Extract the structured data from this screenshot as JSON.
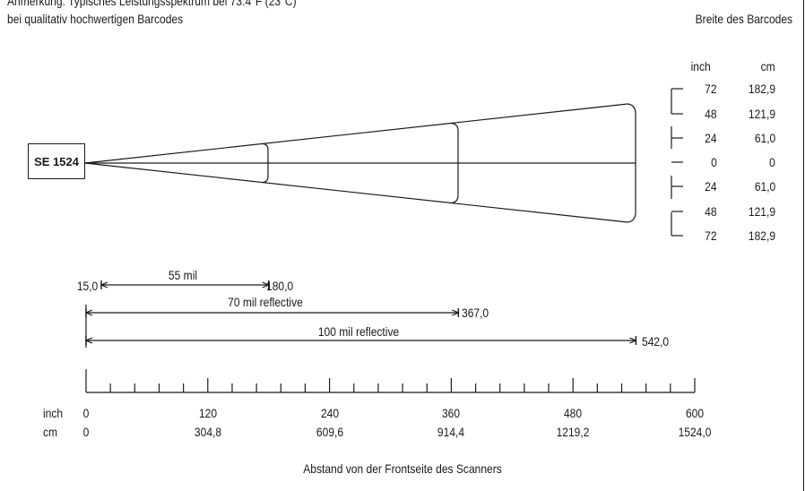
{
  "note": {
    "line1": "Anmerkung: Typisches Leistungsspektrum bei 73.4°F (23°C)",
    "line2": "bei qualitativ hochwertigen Barcodes"
  },
  "scanner_label": "SE 1524",
  "width_header": "Breite des Barcodes",
  "width_units": {
    "inch": "inch",
    "cm": "cm"
  },
  "width_scale": [
    {
      "inch": "72",
      "cm": "182,9"
    },
    {
      "inch": "48",
      "cm": "121,9"
    },
    {
      "inch": "24",
      "cm": "61,0"
    },
    {
      "inch": "0",
      "cm": "0"
    },
    {
      "inch": "24",
      "cm": "61,0"
    },
    {
      "inch": "48",
      "cm": "121,9"
    },
    {
      "inch": "72",
      "cm": "182,9"
    }
  ],
  "ranges": [
    {
      "label": "55 mil",
      "start_text": "15,0",
      "start": 15.0,
      "end_text": "180,0",
      "end": 180.0
    },
    {
      "label": "70 mil reflective",
      "end_text": "367,0",
      "start": 0,
      "end": 367.0
    },
    {
      "label": "100 mil reflective",
      "end_text": "542,0",
      "start": 0,
      "end": 542.0
    }
  ],
  "distance_axis": {
    "unit_inch": "inch",
    "unit_cm": "cm",
    "max": 600,
    "ticks": [
      {
        "inch": "0",
        "cm": "0",
        "value": 0
      },
      {
        "inch": "120",
        "cm": "304,8",
        "value": 120
      },
      {
        "inch": "240",
        "cm": "609,6",
        "value": 240
      },
      {
        "inch": "360",
        "cm": "914,4",
        "value": 360
      },
      {
        "inch": "480",
        "cm": "1219,2",
        "value": 480
      },
      {
        "inch": "600",
        "cm": "1524,0",
        "value": 600
      }
    ],
    "caption": "Abstand von der Frontseite des Scanners"
  }
}
